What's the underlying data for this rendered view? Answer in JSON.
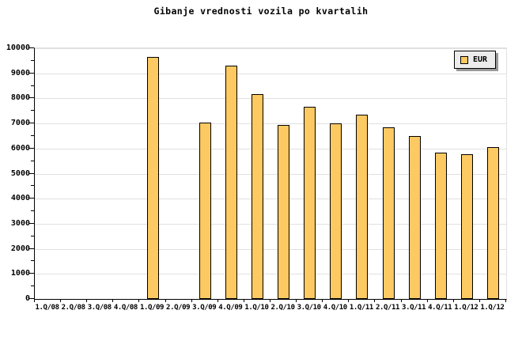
{
  "chart_data": {
    "type": "bar",
    "title": "Gibanje vrednosti vozila po kvartalih",
    "categories": [
      "1.Q/08",
      "2.Q/08",
      "3.Q/08",
      "4.Q/08",
      "1.Q/09",
      "2.Q/09",
      "3.Q/09",
      "4.Q/09",
      "1.Q/10",
      "2.Q/10",
      "3.Q/10",
      "4.Q/10",
      "1.Q/11",
      "2.Q/11",
      "3.Q/11",
      "4.Q/11",
      "1.Q/12",
      "1.Q/12"
    ],
    "series": [
      {
        "name": "EUR",
        "values": [
          0,
          0,
          0,
          0,
          9650,
          0,
          7030,
          9320,
          8170,
          6950,
          7670,
          7000,
          7350,
          6850,
          6500,
          5830,
          5760,
          6050
        ]
      }
    ],
    "xlabel": "",
    "ylabel": "",
    "ylim": [
      0,
      10000
    ],
    "ytick_interval": 1000,
    "ytick_minor_interval": 500,
    "yticks": [
      0,
      1000,
      2000,
      3000,
      4000,
      5000,
      6000,
      7000,
      8000,
      9000,
      10000
    ],
    "grid": true,
    "legend_position": "top-right",
    "colors": {
      "bar_fill": "#FCC963",
      "bar_border": "#000000",
      "grid": "#E0E0E0",
      "axis": "#000000",
      "legend_bg": "#ECECEC",
      "legend_shadow": "#999999",
      "background": "#FFFFFF",
      "text": "#000000"
    }
  }
}
